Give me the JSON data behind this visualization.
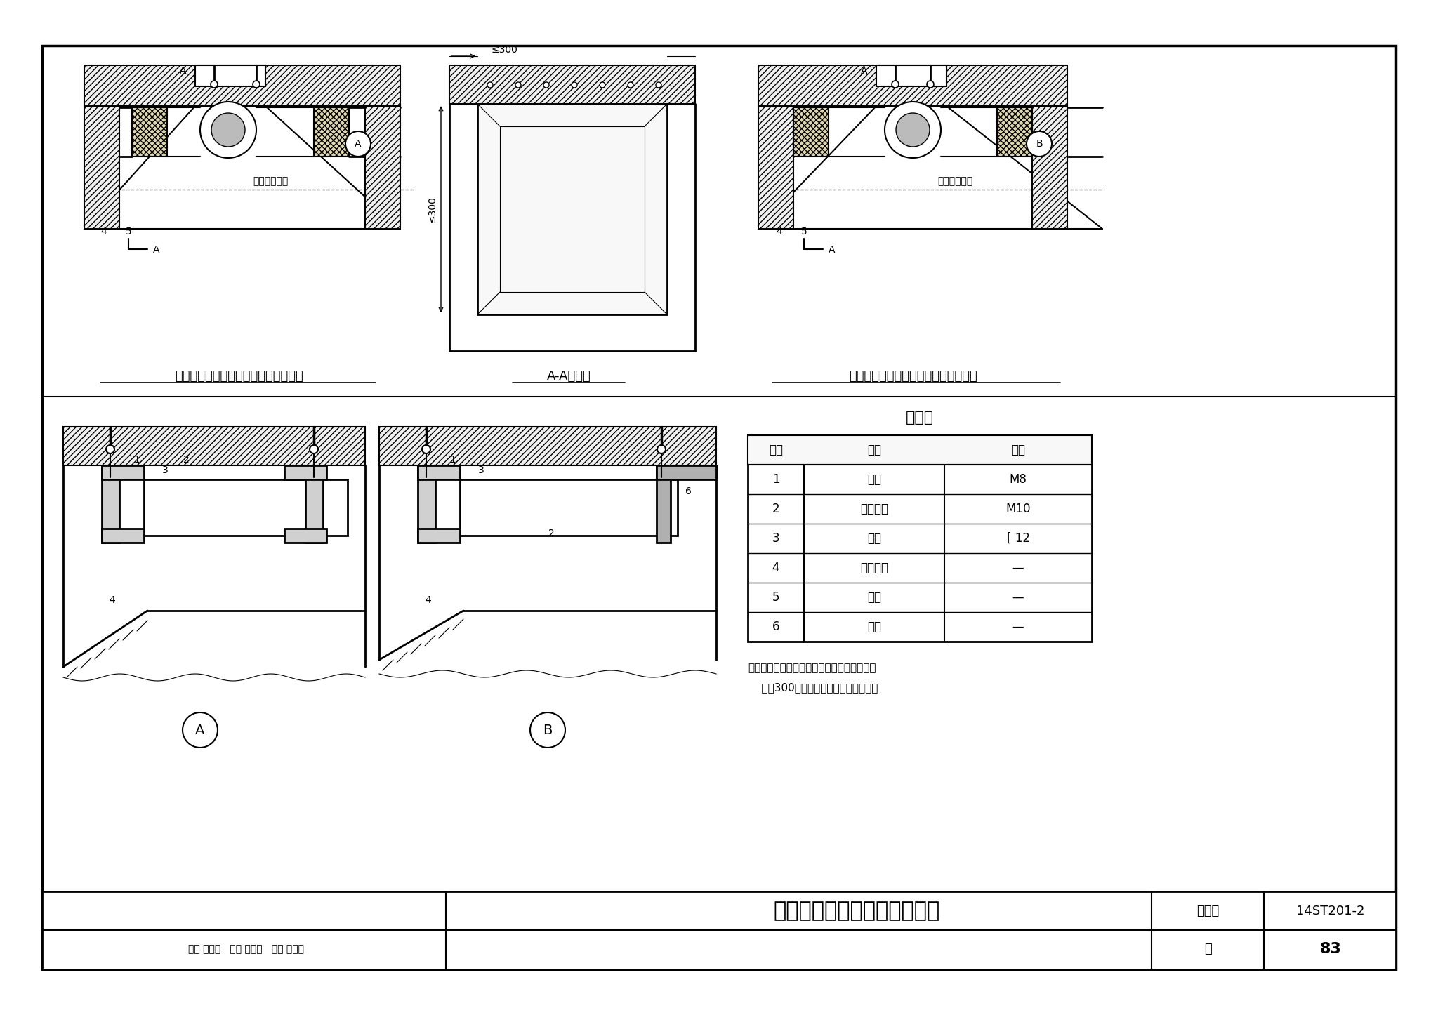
{
  "bg": "#ffffff",
  "K": "#000000",
  "title": "轨顶排热风管与结构风道连接",
  "title_num": "14ST201-2",
  "page": "83",
  "caption1": "风管与结构风道连接方式（一）立面图",
  "caption2": "A-A剖面图",
  "caption3": "风管与结构风道连接方式（二）立面图",
  "mat_title": "材料表",
  "mat_headers": [
    "编号",
    "名称",
    "规格"
  ],
  "mat_rows": [
    [
      "1",
      "螺栓",
      "M8"
    ],
    [
      "2",
      "膨胀螺栓",
      "M10"
    ],
    [
      "3",
      "槽钢",
      "[ 12"
    ],
    [
      "4",
      "金属风管",
      "—"
    ],
    [
      "5",
      "软接",
      "—"
    ],
    [
      "6",
      "角钢",
      "—"
    ]
  ],
  "note1": "注：土建风道上固定槽钢的膨胀螺栓间距不得",
  "note2": "    大于300，四角部位应设有膨胀螺栓。",
  "rail_duct": "轨顶结构风道",
  "dim300": "≤300"
}
